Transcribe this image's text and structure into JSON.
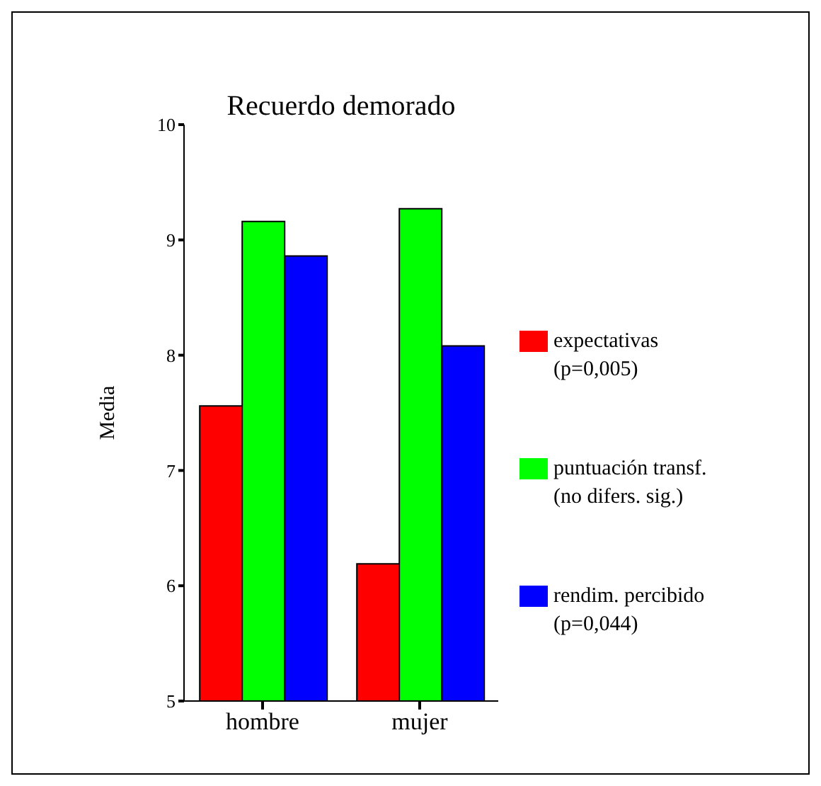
{
  "chart_data": {
    "type": "bar",
    "title": "Recuerdo demorado",
    "ylabel": "Media",
    "categories": [
      "hombre",
      "mujer"
    ],
    "series": [
      {
        "name": "expectativas (p=0,005)",
        "color": "#ff0000",
        "values": [
          7.56,
          6.19
        ]
      },
      {
        "name": "puntuación transf. (no difers. sig.)",
        "color": "#00ff00",
        "values": [
          9.16,
          9.27
        ]
      },
      {
        "name": "rendim. percibido (p=0,044)",
        "color": "#0000ff",
        "values": [
          8.86,
          8.08
        ]
      }
    ],
    "ylim": [
      5,
      10
    ],
    "yticks": [
      5,
      6,
      7,
      8,
      9,
      10
    ],
    "legend": "right"
  }
}
